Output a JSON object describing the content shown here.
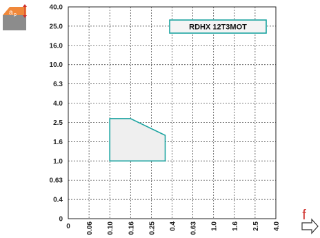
{
  "chart_data": {
    "type": "area",
    "xlabel": "f",
    "ylabel": "a_p",
    "x_ticks": [
      "0",
      "0.06",
      "0.10",
      "0.16",
      "0.25",
      "0.4",
      "0.63",
      "1.0",
      "1.6",
      "2.5",
      "4.0"
    ],
    "y_ticks": [
      "40.0",
      "25.0",
      "16.0",
      "10.0",
      "6.3",
      "4.0",
      "2.5",
      "1.6",
      "1.0",
      "0.63",
      "0.4",
      "0"
    ],
    "grid": true,
    "series": [
      {
        "name": "RDHX 12T3MOT",
        "x": [
          0.1,
          0.16,
          0.35,
          0.35,
          0.1
        ],
        "y": [
          2.8,
          2.8,
          1.9,
          1.0,
          1.0
        ]
      }
    ],
    "legend_position": "top-right",
    "colors": {
      "series": "#1aa3a0",
      "fill": "#efefef",
      "axis": "#222222",
      "accent": "#d0312d",
      "icon": "#f0883a"
    }
  },
  "icons": {
    "ap": "cutting-depth-icon",
    "f": "feed-direction-arrow-icon"
  },
  "ap_label": "a",
  "ap_sub": "p"
}
